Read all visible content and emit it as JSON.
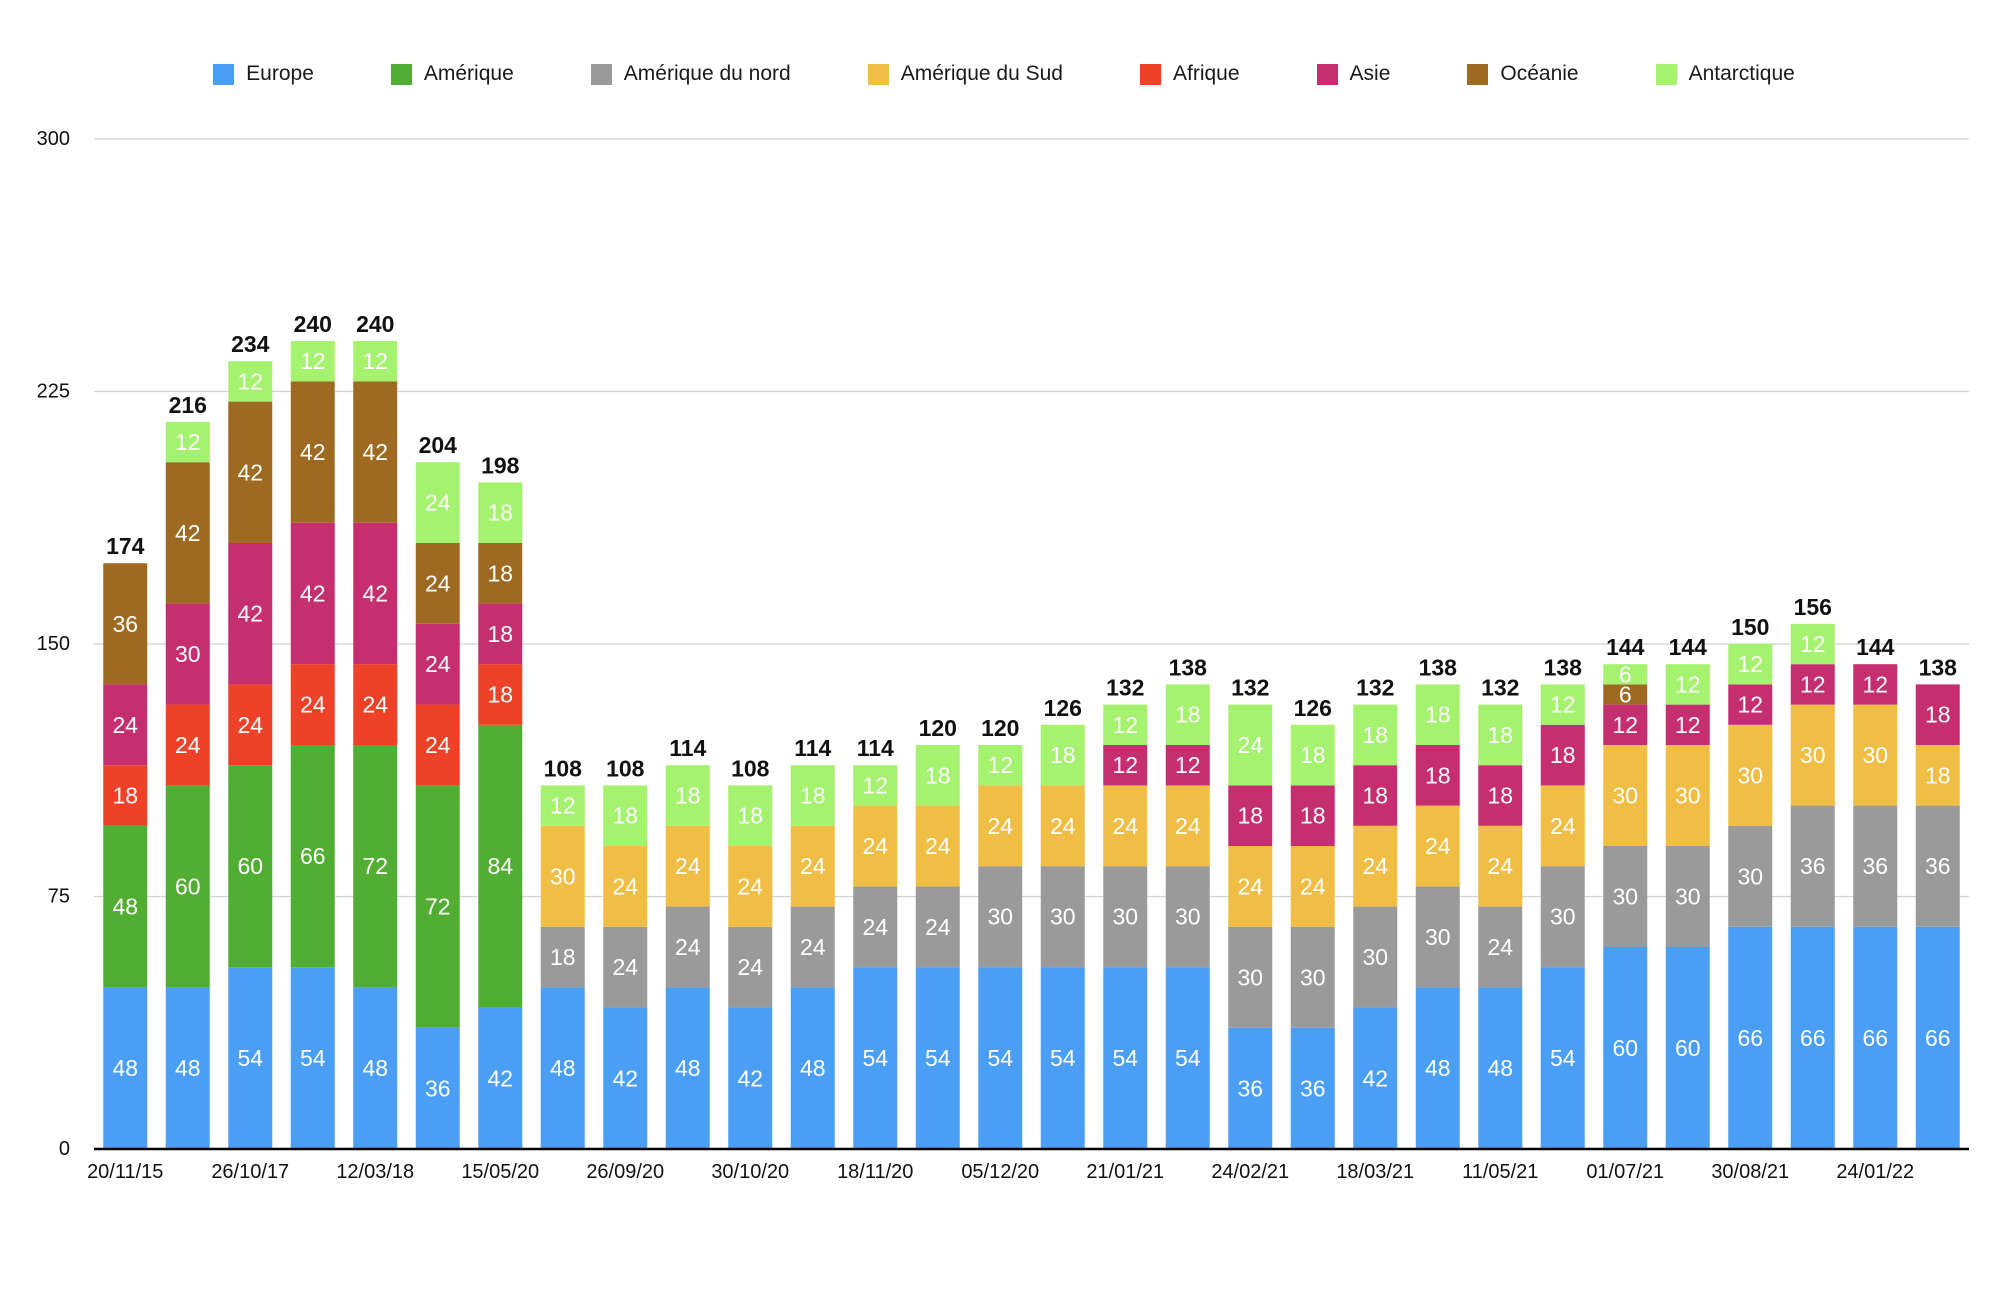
{
  "chart_data": {
    "type": "bar",
    "stacked": true,
    "categories": [
      "20/11/15",
      "",
      "26/10/17",
      "",
      "12/03/18",
      "",
      "15/05/20",
      "",
      "26/09/20",
      "",
      "30/10/20",
      "",
      "18/11/20",
      "",
      "05/12/20",
      "",
      "21/01/21",
      "",
      "24/02/21",
      "",
      "18/03/21",
      "",
      "11/05/21",
      "",
      "01/07/21",
      "",
      "30/08/21",
      "",
      "24/01/22",
      ""
    ],
    "series": [
      {
        "name": "Europe",
        "color": "#4a9ff5",
        "values": [
          48,
          48,
          54,
          54,
          48,
          36,
          42,
          48,
          42,
          48,
          42,
          48,
          54,
          54,
          54,
          54,
          54,
          54,
          36,
          36,
          42,
          48,
          48,
          54,
          60,
          60,
          66,
          66,
          66,
          66
        ]
      },
      {
        "name": "Amérique",
        "color": "#52ae32",
        "values": [
          48,
          60,
          60,
          66,
          72,
          72,
          84,
          0,
          0,
          0,
          0,
          0,
          0,
          0,
          0,
          0,
          0,
          0,
          0,
          0,
          0,
          0,
          0,
          0,
          0,
          0,
          0,
          0,
          0,
          0
        ]
      },
      {
        "name": "Amérique du nord",
        "color": "#9a9a9a",
        "values": [
          0,
          0,
          0,
          0,
          0,
          0,
          0,
          18,
          24,
          24,
          24,
          24,
          24,
          24,
          30,
          30,
          30,
          30,
          30,
          30,
          30,
          30,
          24,
          30,
          30,
          30,
          30,
          36,
          36,
          36
        ]
      },
      {
        "name": "Amérique du Sud",
        "color": "#f0bd45",
        "values": [
          0,
          0,
          0,
          0,
          0,
          0,
          0,
          30,
          24,
          24,
          24,
          24,
          24,
          24,
          24,
          24,
          24,
          24,
          24,
          24,
          24,
          24,
          24,
          24,
          30,
          30,
          30,
          30,
          30,
          18
        ]
      },
      {
        "name": "Afrique",
        "color": "#ed4128",
        "values": [
          18,
          24,
          24,
          24,
          24,
          24,
          18,
          0,
          0,
          0,
          0,
          0,
          0,
          0,
          0,
          0,
          0,
          0,
          0,
          0,
          0,
          0,
          0,
          0,
          0,
          0,
          0,
          0,
          0,
          0
        ]
      },
      {
        "name": "Asie",
        "color": "#c52f70",
        "values": [
          24,
          30,
          42,
          42,
          42,
          24,
          18,
          0,
          0,
          0,
          0,
          0,
          0,
          0,
          0,
          0,
          12,
          12,
          18,
          18,
          18,
          18,
          18,
          18,
          12,
          12,
          12,
          12,
          12,
          18
        ]
      },
      {
        "name": "Océanie",
        "color": "#9e6a22",
        "values": [
          36,
          42,
          42,
          42,
          42,
          24,
          18,
          0,
          0,
          0,
          0,
          0,
          0,
          0,
          0,
          0,
          0,
          0,
          0,
          0,
          0,
          0,
          0,
          0,
          6,
          0,
          0,
          0,
          0,
          0
        ]
      },
      {
        "name": "Antarctique",
        "color": "#a5f26f",
        "values": [
          0,
          12,
          12,
          12,
          12,
          24,
          18,
          12,
          18,
          18,
          18,
          18,
          12,
          18,
          12,
          18,
          12,
          18,
          24,
          18,
          18,
          18,
          18,
          12,
          6,
          12,
          12,
          12,
          0,
          0
        ]
      }
    ],
    "totals": [
      174,
      216,
      234,
      240,
      240,
      204,
      198,
      108,
      108,
      114,
      108,
      114,
      114,
      120,
      120,
      126,
      132,
      138,
      132,
      126,
      132,
      138,
      132,
      138,
      144,
      144,
      150,
      156,
      144,
      138
    ],
    "ylim": [
      0,
      300
    ],
    "yticks": [
      0,
      75,
      150,
      225,
      300
    ],
    "grid": true,
    "legend": "top"
  }
}
